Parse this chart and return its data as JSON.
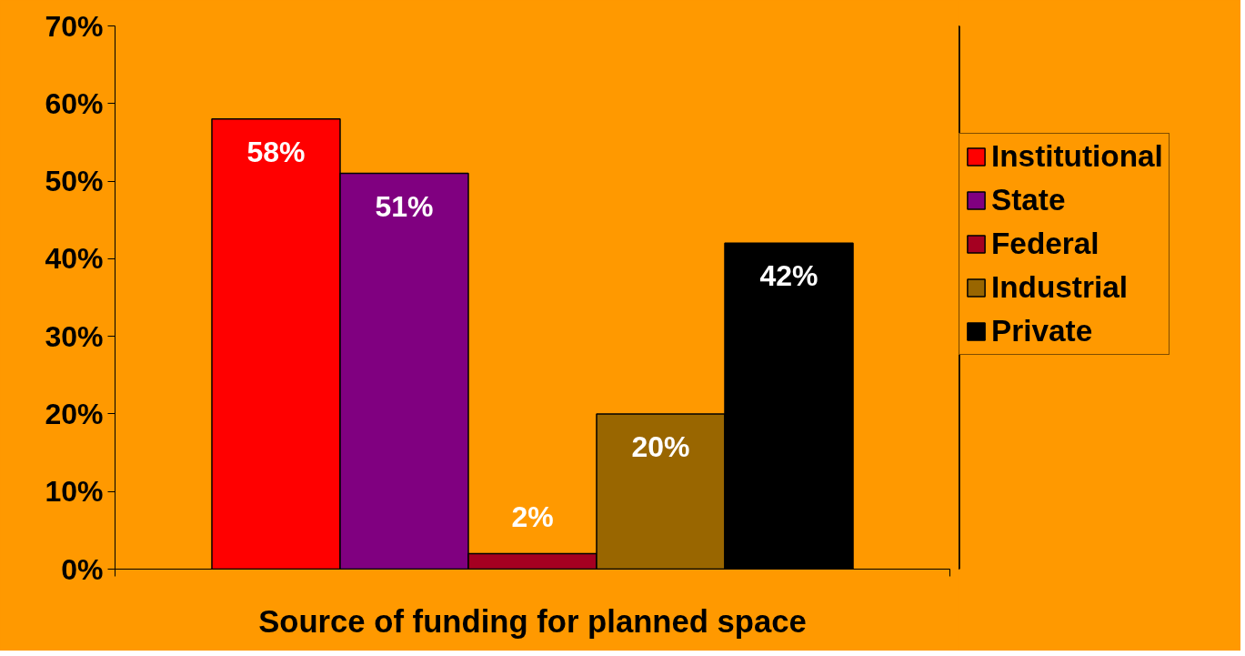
{
  "chart_data": {
    "type": "bar",
    "xlabel": "Source of funding for planned space",
    "categories": [
      null
    ],
    "series": [
      {
        "name": "Institutional",
        "color": "#ff0000",
        "values": [
          58
        ],
        "value_labels": [
          "58%"
        ]
      },
      {
        "name": "State",
        "color": "#800080",
        "values": [
          51
        ],
        "value_labels": [
          "51%"
        ]
      },
      {
        "name": "Federal",
        "color": "#a50021",
        "values": [
          2
        ],
        "value_labels": [
          "2%"
        ]
      },
      {
        "name": "Industrial",
        "color": "#996600",
        "values": [
          20
        ],
        "value_labels": [
          "20%"
        ]
      },
      {
        "name": "Private",
        "color": "#000000",
        "values": [
          42
        ],
        "value_labels": [
          "42%"
        ]
      }
    ],
    "ylim": [
      0,
      70
    ],
    "yticks": [
      {
        "value": 0,
        "label": "0%"
      },
      {
        "value": 10,
        "label": "10%"
      },
      {
        "value": 20,
        "label": "20%"
      },
      {
        "value": 30,
        "label": "30%"
      },
      {
        "value": 40,
        "label": "40%"
      },
      {
        "value": 50,
        "label": "50%"
      },
      {
        "value": 60,
        "label": "60%"
      },
      {
        "value": 70,
        "label": "70%"
      }
    ],
    "data_labels": true,
    "legend": "right",
    "grid": false
  }
}
